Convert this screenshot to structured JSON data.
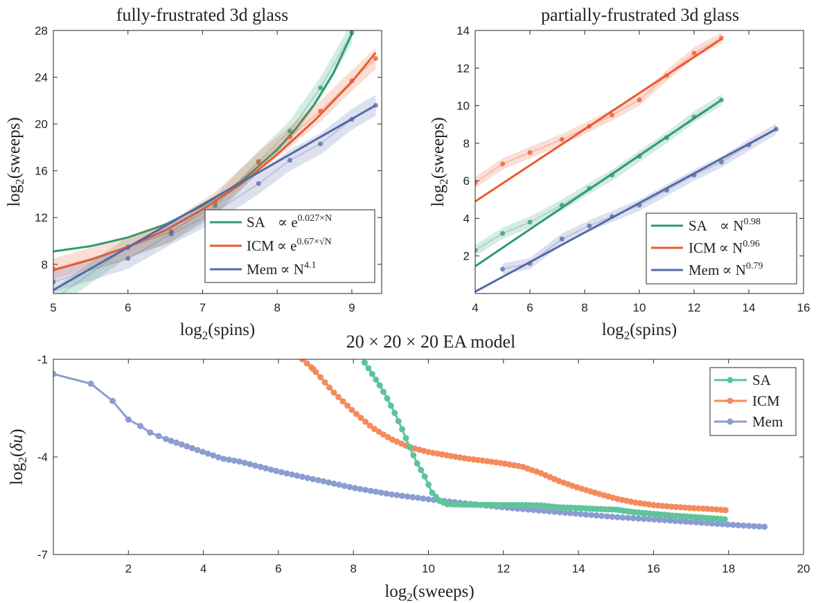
{
  "chart_data": [
    {
      "type": "line",
      "title": "fully-frustrated 3d glass",
      "xlabel": "log2(spins)",
      "ylabel": "log2(sweeps)",
      "xlim": [
        5,
        9.4
      ],
      "ylim": [
        5.5,
        28
      ],
      "xticks": [
        5,
        6,
        7,
        8,
        9
      ],
      "yticks": [
        8,
        12,
        16,
        20,
        24,
        28
      ],
      "legend_position": "bottom-right",
      "series": [
        {
          "name": "SA",
          "formula": "∝ e^(0.027×N)",
          "color": "#2e9a72",
          "points_x": [
            5.0,
            6.0,
            6.58,
            7.17,
            7.75,
            8.17,
            8.58,
            9.0
          ],
          "points_y": [
            5.0,
            9.5,
            10.8,
            13.0,
            16.8,
            19.4,
            23.1,
            27.8
          ],
          "fit_x": [
            5.0,
            5.5,
            6.0,
            6.5,
            7.0,
            7.5,
            8.0,
            8.25,
            8.5,
            8.75,
            9.0
          ],
          "fit_y": [
            9.1,
            9.55,
            10.3,
            11.4,
            13.0,
            15.0,
            17.8,
            19.6,
            21.7,
            24.3,
            27.7
          ]
        },
        {
          "name": "ICM",
          "formula": "∝ e^(0.67×√N)",
          "color": "#ea5a2f",
          "points_x": [
            5.0,
            6.0,
            6.58,
            7.17,
            7.75,
            8.17,
            8.58,
            9.0,
            9.32
          ],
          "points_y": [
            7.6,
            9.4,
            10.8,
            13.3,
            16.7,
            18.9,
            21.1,
            23.7,
            25.6
          ],
          "fit_x": [
            5.0,
            5.5,
            6.0,
            6.5,
            7.0,
            7.5,
            8.0,
            8.5,
            9.0,
            9.32
          ],
          "fit_y": [
            7.5,
            8.4,
            9.5,
            10.9,
            12.7,
            14.8,
            17.4,
            20.3,
            23.6,
            26.1
          ]
        },
        {
          "name": "Mem",
          "formula": "∝ N^4.1",
          "color": "#5568a8",
          "points_x": [
            5.0,
            6.0,
            6.58,
            7.17,
            7.75,
            8.17,
            8.58,
            9.0,
            9.32
          ],
          "points_y": [
            6.5,
            8.5,
            10.6,
            12.5,
            14.9,
            16.9,
            18.3,
            20.4,
            21.6
          ],
          "fit_x": [
            5.0,
            9.32
          ],
          "fit_y": [
            5.8,
            21.6
          ]
        }
      ],
      "legend_label_prefixes": [
        "SA",
        "ICM",
        "Mem"
      ],
      "legend_label_tails": [
        "e",
        "e",
        "N"
      ],
      "legend_label_exponents": [
        "0.027×N",
        "0.67×√N",
        "4.1"
      ]
    },
    {
      "type": "line",
      "title": "partially-frustrated 3d glass",
      "xlabel": "log2(spins)",
      "ylabel": "log2(sweeps)",
      "xlim": [
        4,
        16
      ],
      "ylim": [
        0,
        14
      ],
      "xticks": [
        4,
        6,
        8,
        10,
        12,
        14,
        16
      ],
      "yticks": [
        2,
        4,
        6,
        8,
        10,
        12,
        14
      ],
      "legend_position": "bottom-right",
      "series": [
        {
          "name": "SA",
          "formula": "∝ N^0.98",
          "color": "#2e9a72",
          "points_x": [
            4,
            5,
            6,
            7.17,
            8.17,
            9,
            10,
            11,
            12,
            13
          ],
          "points_y": [
            2.3,
            3.2,
            3.8,
            4.7,
            5.6,
            6.3,
            7.3,
            8.3,
            9.4,
            10.3
          ],
          "fit_x": [
            4,
            13
          ],
          "fit_y": [
            1.45,
            10.3
          ]
        },
        {
          "name": "ICM",
          "formula": "∝ N^0.96",
          "color": "#ea5a2f",
          "points_x": [
            4,
            5,
            6,
            7.17,
            8.17,
            9,
            10,
            11,
            12,
            13
          ],
          "points_y": [
            5.9,
            6.9,
            7.5,
            8.2,
            8.9,
            9.5,
            10.3,
            11.6,
            12.8,
            13.6
          ],
          "fit_x": [
            4,
            13
          ],
          "fit_y": [
            4.9,
            13.55
          ]
        },
        {
          "name": "Mem",
          "formula": "∝ N^0.79",
          "color": "#5568a8",
          "points_x": [
            5,
            6,
            7.17,
            8.17,
            9,
            10,
            11,
            12,
            13,
            14,
            15
          ],
          "points_y": [
            1.3,
            1.6,
            2.9,
            3.6,
            4.1,
            4.7,
            5.5,
            6.3,
            7.0,
            7.9,
            8.75
          ],
          "fit_x": [
            4,
            15
          ],
          "fit_y": [
            0.1,
            8.75
          ]
        }
      ],
      "legend_label_prefixes": [
        "SA",
        "ICM",
        "Mem"
      ],
      "legend_label_tails": [
        "N",
        "N",
        "N"
      ],
      "legend_label_exponents": [
        "0.98",
        "0.96",
        "0.79"
      ]
    },
    {
      "type": "line",
      "title": "20 × 20 × 20 EA model",
      "xlabel": "log2(sweeps)",
      "ylabel": "log2(δu)",
      "xlim": [
        0,
        20
      ],
      "ylim": [
        -7,
        -1
      ],
      "xticks": [
        2,
        4,
        6,
        8,
        10,
        12,
        14,
        16,
        18,
        20
      ],
      "yticks": [
        -1,
        -4,
        -7
      ],
      "legend_position": "top-right",
      "series": [
        {
          "name": "SA",
          "color": "#5ec49a",
          "x": [
            8.3,
            8.5,
            8.7,
            8.9,
            9.1,
            9.3,
            9.5,
            9.7,
            9.9,
            10.0,
            10.1,
            10.3,
            10.5,
            11.0,
            11.5,
            12.0,
            12.5,
            13.0,
            13.5,
            14.0,
            14.5,
            15.0,
            15.5,
            16.0,
            16.5,
            17.0,
            17.5,
            17.96
          ],
          "y": [
            -1.1,
            -1.45,
            -1.8,
            -2.2,
            -2.65,
            -3.15,
            -3.7,
            -4.2,
            -4.6,
            -4.85,
            -5.1,
            -5.35,
            -5.45,
            -5.47,
            -5.47,
            -5.48,
            -5.48,
            -5.49,
            -5.55,
            -5.57,
            -5.6,
            -5.62,
            -5.7,
            -5.75,
            -5.8,
            -5.84,
            -5.88,
            -5.92
          ]
        },
        {
          "name": "ICM",
          "color": "#f48b5c",
          "x": [
            6.64,
            6.93,
            7.5,
            8.0,
            8.5,
            9.0,
            9.5,
            10.0,
            10.5,
            11.0,
            11.5,
            12.0,
            12.5,
            13.0,
            13.5,
            14.0,
            14.5,
            15.0,
            15.5,
            16.0,
            16.5,
            17.0,
            17.5,
            17.96
          ],
          "y": [
            -1.0,
            -1.3,
            -2.05,
            -2.6,
            -3.1,
            -3.45,
            -3.7,
            -3.85,
            -3.95,
            -4.05,
            -4.12,
            -4.2,
            -4.3,
            -4.5,
            -4.75,
            -4.95,
            -5.12,
            -5.28,
            -5.4,
            -5.48,
            -5.53,
            -5.57,
            -5.6,
            -5.64
          ]
        },
        {
          "name": "Mem",
          "color": "#8b9dd0",
          "x": [
            0.0,
            1.0,
            1.58,
            2.0,
            2.32,
            2.58,
            3.0,
            3.5,
            4.0,
            4.5,
            5.0,
            6.0,
            7.0,
            8.0,
            9.0,
            10.0,
            11.0,
            12.0,
            13.0,
            14.0,
            15.0,
            16.0,
            17.0,
            18.0,
            19.0
          ],
          "y": [
            -1.45,
            -1.75,
            -2.28,
            -2.85,
            -3.05,
            -3.25,
            -3.45,
            -3.65,
            -3.85,
            -4.05,
            -4.15,
            -4.45,
            -4.7,
            -4.95,
            -5.15,
            -5.3,
            -5.43,
            -5.55,
            -5.65,
            -5.75,
            -5.85,
            -5.92,
            -6.0,
            -6.08,
            -6.15
          ]
        }
      ]
    }
  ]
}
